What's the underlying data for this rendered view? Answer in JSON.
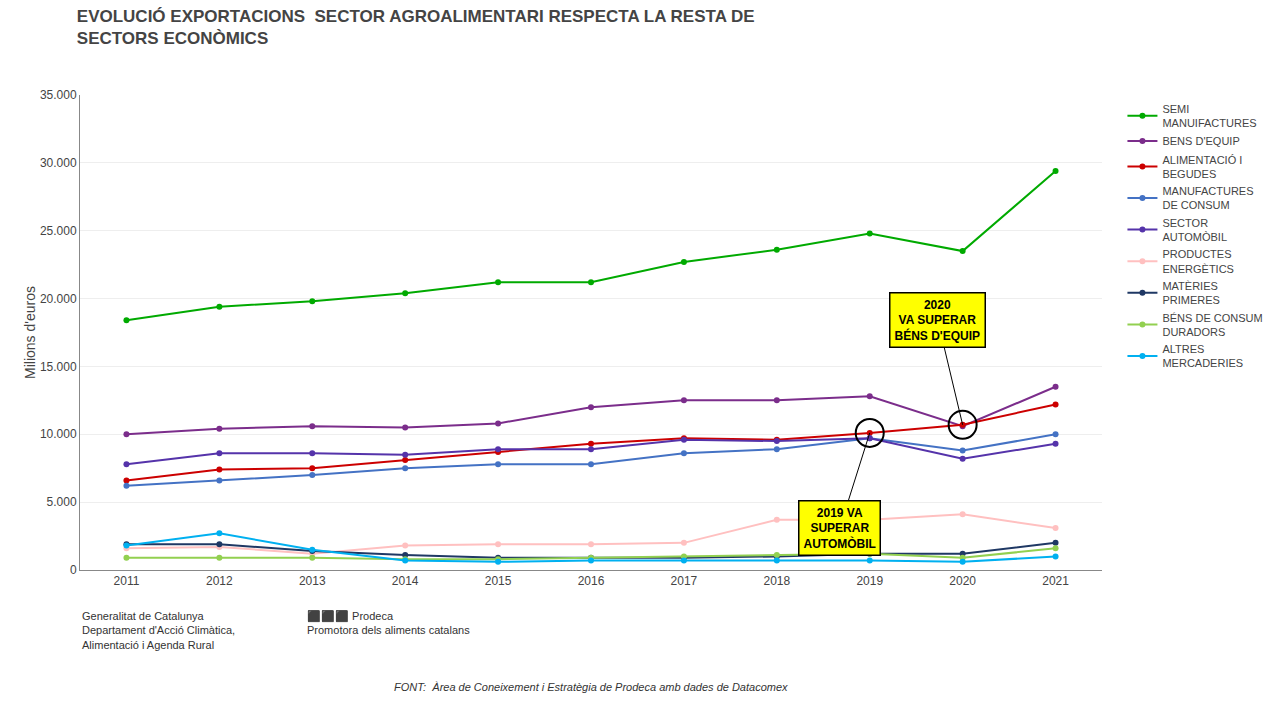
{
  "chart_data": {
    "type": "line",
    "title": "EVOLUCIÓ EXPORTACIONS  SECTOR AGROALIMENTARI RESPECTA LA RESTA DE\nSECTORS ECONÒMICS",
    "ylabel": "Milions d'euros",
    "x": [
      2011,
      2012,
      2013,
      2014,
      2015,
      2016,
      2017,
      2018,
      2019,
      2020,
      2021
    ],
    "series": [
      {
        "name": "SEMI\nMANUIFACTURES",
        "color": "#00AA00",
        "values": [
          18400,
          19400,
          19800,
          20400,
          21200,
          21200,
          22700,
          23600,
          24800,
          23500,
          29400
        ]
      },
      {
        "name": "BENS D'EQUIP",
        "color": "#7B2D8B",
        "values": [
          10000,
          10400,
          10600,
          10500,
          10800,
          12000,
          12500,
          12500,
          12800,
          10600,
          13500
        ]
      },
      {
        "name": "ALIMENTACIÓ I\nBEGUDES",
        "color": "#CC0000",
        "values": [
          6600,
          7400,
          7500,
          8100,
          8700,
          9300,
          9700,
          9600,
          10100,
          10700,
          12200
        ]
      },
      {
        "name": "MANUFACTURES\nDE CONSUM",
        "color": "#4472C4",
        "values": [
          6200,
          6600,
          7000,
          7500,
          7800,
          7800,
          8600,
          8900,
          9700,
          8800,
          10000
        ]
      },
      {
        "name": "SECTOR\nAUTOMÒBIL",
        "color": "#5533AA",
        "values": [
          7800,
          8600,
          8600,
          8500,
          8900,
          8900,
          9600,
          9500,
          9700,
          8200,
          9300
        ]
      },
      {
        "name": "PRODUCTES\nENERGÈTICS",
        "color": "#FFC0C0",
        "values": [
          1600,
          1700,
          1200,
          1800,
          1900,
          1900,
          2000,
          3700,
          3700,
          4100,
          3100
        ]
      },
      {
        "name": "MATÈRIES\nPRIMERES",
        "color": "#1F3864",
        "values": [
          1900,
          1900,
          1400,
          1100,
          900,
          900,
          900,
          1000,
          1200,
          1200,
          2000
        ]
      },
      {
        "name": "BÉNS DE CONSUM\nDURADORS",
        "color": "#92D050",
        "values": [
          900,
          900,
          900,
          800,
          800,
          900,
          1000,
          1100,
          1200,
          900,
          1600
        ]
      },
      {
        "name": "ALTRES\nMERCADERIES",
        "color": "#00B0F0",
        "values": [
          1800,
          2700,
          1500,
          700,
          600,
          700,
          700,
          700,
          700,
          600,
          1000
        ]
      }
    ],
    "xlim": [
      2010.5,
      2021.5
    ],
    "xticks": [
      2011,
      2012,
      2013,
      2014,
      2015,
      2016,
      2017,
      2018,
      2019,
      2020,
      2021
    ],
    "ylim": [
      0,
      35000
    ],
    "yticks": [
      0,
      {
        "value": 5000,
        "label": "5.000"
      },
      {
        "value": 10000,
        "label": "10.000"
      },
      {
        "value": 15000,
        "label": "15.000"
      },
      {
        "value": 20000,
        "label": "20.000"
      },
      {
        "value": 25000,
        "label": "25.000"
      },
      {
        "value": 30000,
        "label": "30.000"
      },
      {
        "value": 35000,
        "label": "35.000"
      }
    ],
    "grid": "y",
    "legend": "right",
    "marker": "circle",
    "annotations": [
      {
        "text": "2019 VA\nSUPERAR\nAUTOMÒBIL",
        "x": 2019,
        "y": 10100
      },
      {
        "text": "2020\nVA SUPERAR\nBÉNS D'EQUIP",
        "x": 2020,
        "y": 10700
      }
    ],
    "source": "FONT:  Àrea de Coneixement i Estratègia de Prodeca amb dades de Datacomex",
    "footnotes": [
      "Generalitat de Catalunya\nDepartament d'Acció Climàtica,\nAlimentació i Agenda Rural",
      "⬛⬛⬛ Prodeca\nPromotora dels aliments catalans"
    ]
  }
}
